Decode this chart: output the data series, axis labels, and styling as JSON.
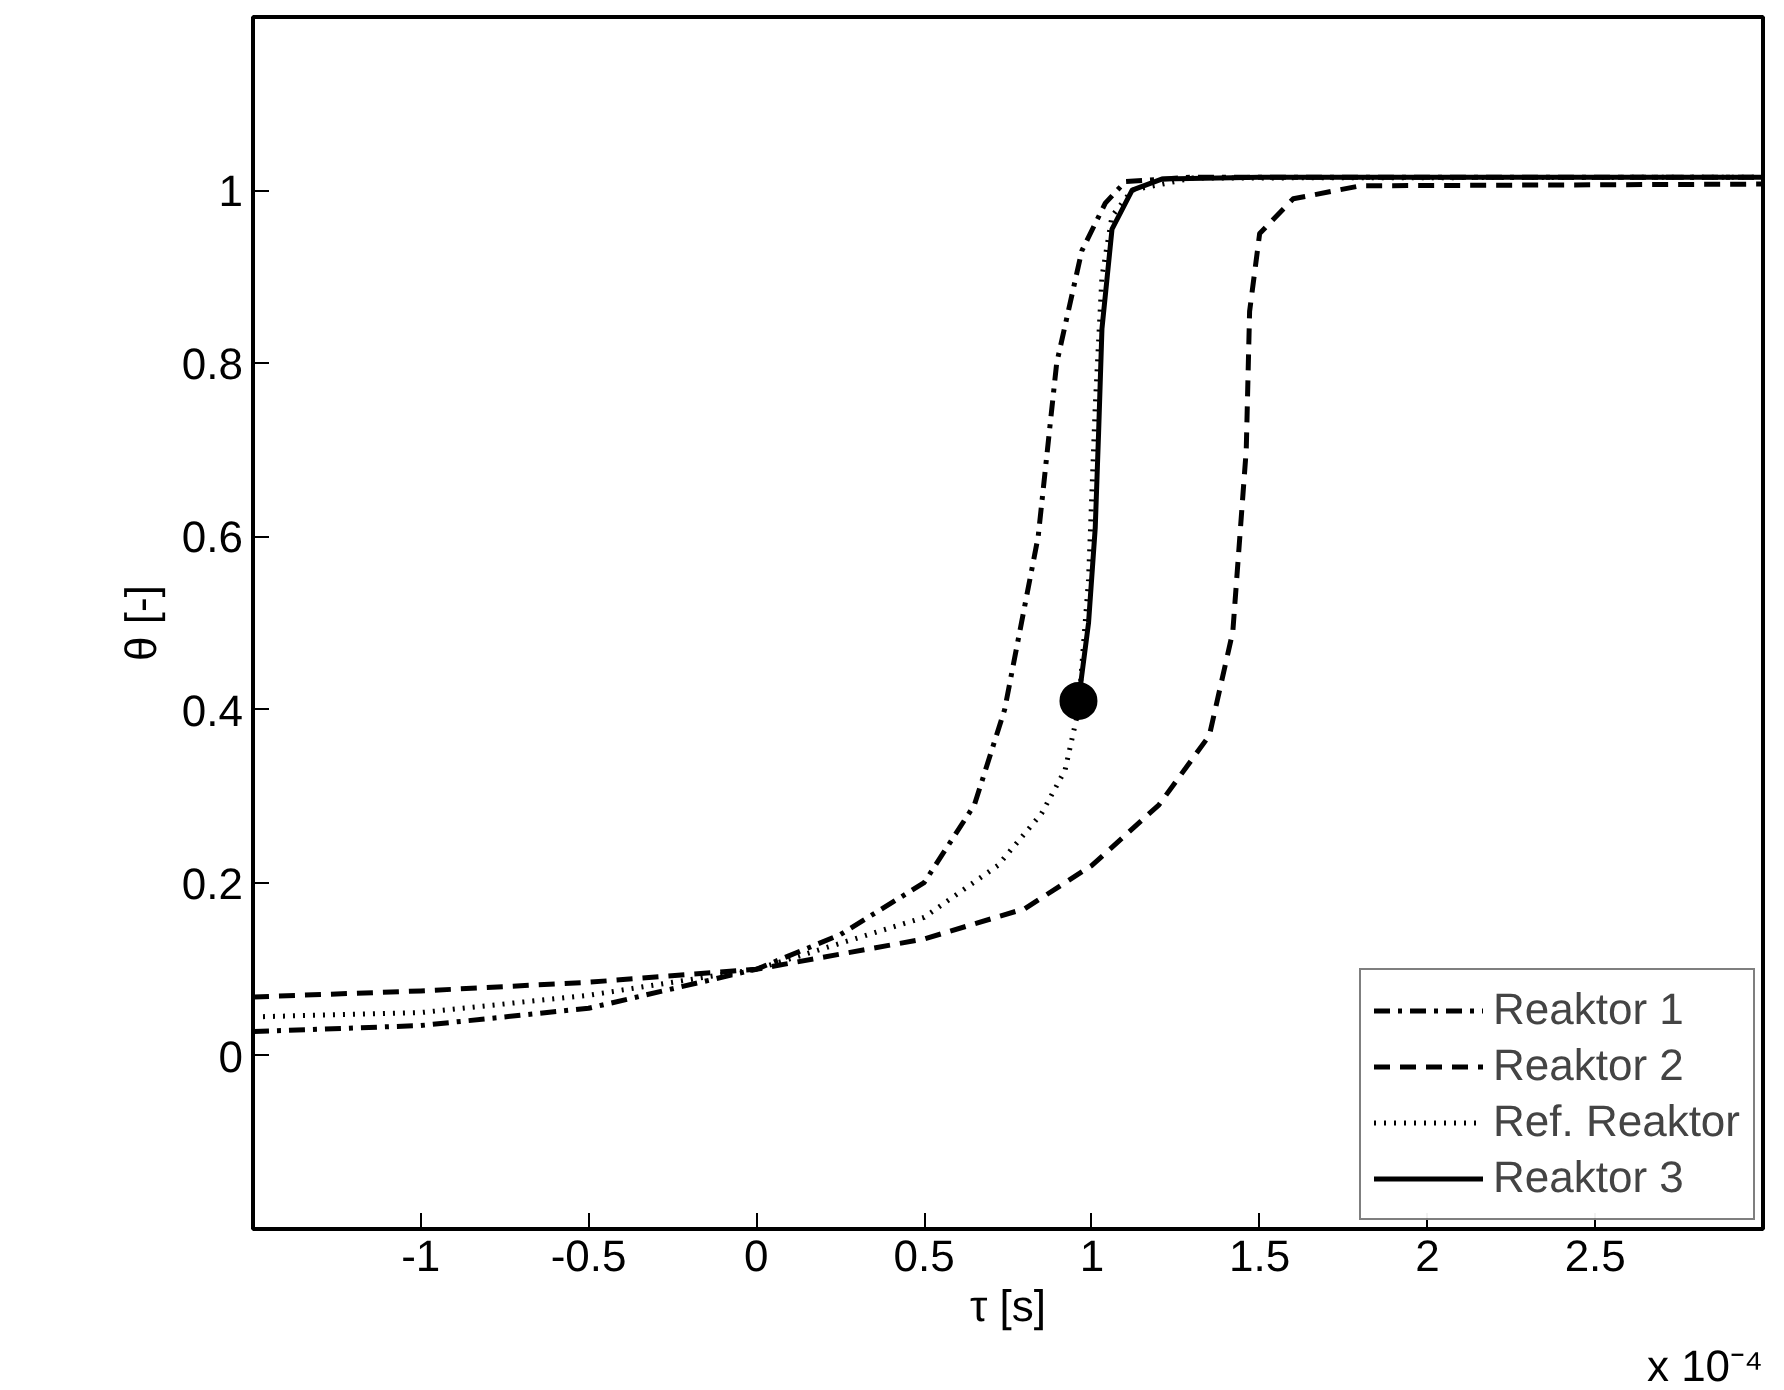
{
  "chart_data": {
    "type": "line",
    "xlabel": "τ [s]",
    "ylabel": "θ [-]",
    "annotations": [
      "x 10⁻⁴"
    ],
    "xlim": [
      -1.5,
      3
    ],
    "ylim": [
      -0.2,
      1.2
    ],
    "xticks": [
      -1,
      -0.5,
      0,
      0.5,
      1,
      1.5,
      2,
      2.5
    ],
    "yticks": [
      0,
      0.2,
      0.4,
      0.6,
      0.8,
      1
    ],
    "grid": false,
    "legend": "bottom right",
    "series": [
      {
        "name": "Reaktor 1",
        "color": "#000000",
        "line_style": "dashdot",
        "x": [
          -1.5,
          -1,
          -0.5,
          0,
          0.25,
          0.5,
          0.65,
          0.74,
          0.84,
          0.895,
          0.97,
          1.04,
          1.1,
          1.3,
          2,
          3
        ],
        "values": [
          0.028,
          0.035,
          0.055,
          0.1,
          0.14,
          0.2,
          0.29,
          0.4,
          0.6,
          0.8,
          0.93,
          0.985,
          1.01,
          1.015,
          1.015,
          1.015
        ]
      },
      {
        "name": "Reaktor 2",
        "color": "#000000",
        "line_style": "dashed",
        "x": [
          -1.5,
          -1,
          -0.5,
          0,
          0.5,
          0.8,
          1.0,
          1.2,
          1.35,
          1.42,
          1.46,
          1.47,
          1.5,
          1.6,
          1.8,
          3
        ],
        "values": [
          0.068,
          0.075,
          0.085,
          0.1,
          0.135,
          0.17,
          0.22,
          0.29,
          0.37,
          0.49,
          0.7,
          0.86,
          0.95,
          0.99,
          1.005,
          1.007
        ]
      },
      {
        "name": "Ref. Reaktor",
        "color": "#000000",
        "line_style": "dotted",
        "x": [
          -1.5,
          -1,
          -0.5,
          0,
          0.5,
          0.72,
          0.85,
          0.92,
          0.96,
          0.99,
          1.01,
          1.03,
          1.06,
          1.12,
          1.3,
          3
        ],
        "values": [
          0.045,
          0.05,
          0.07,
          0.1,
          0.16,
          0.22,
          0.28,
          0.33,
          0.4,
          0.55,
          0.75,
          0.9,
          0.97,
          1.0,
          1.014,
          1.015
        ]
      },
      {
        "name": "Reaktor 3",
        "color": "#000000",
        "line_style": "solid",
        "x": [
          0.96,
          0.99,
          1.01,
          1.02,
          1.03,
          1.06,
          1.12,
          1.21,
          1.5,
          3
        ],
        "values": [
          0.41,
          0.5,
          0.61,
          0.72,
          0.84,
          0.955,
          1.0,
          1.013,
          1.015,
          1.015
        ]
      },
      {
        "type": "scatter",
        "marker": "circle",
        "color": "#000000",
        "x": [
          0.96
        ],
        "values": [
          0.41
        ]
      }
    ]
  }
}
